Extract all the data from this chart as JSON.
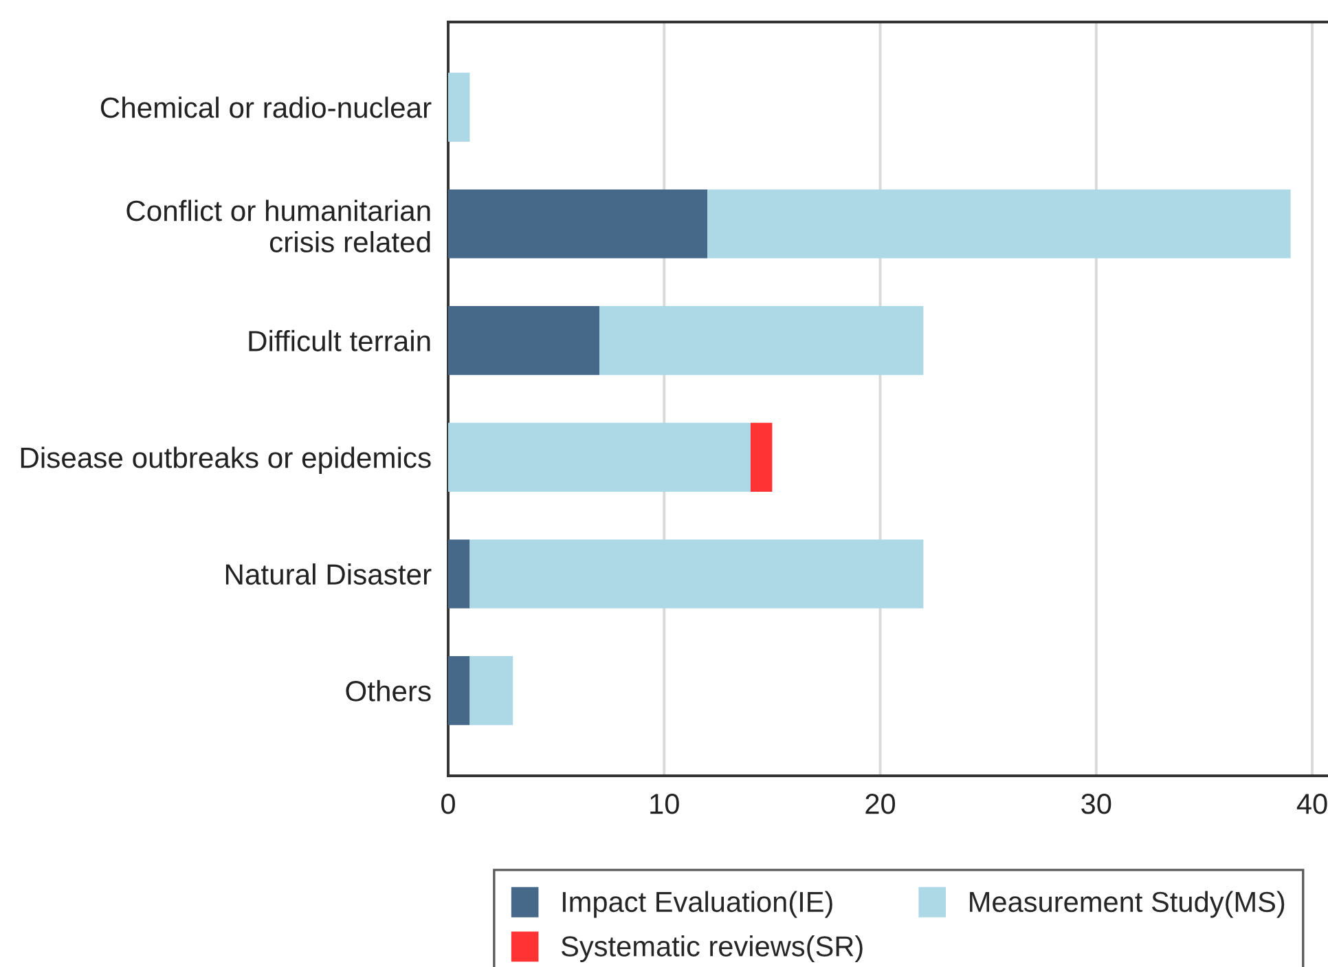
{
  "chart_data": {
    "type": "bar",
    "orientation": "horizontal",
    "stacked": true,
    "categories": [
      "Chemical or radio-nuclear",
      "Conflict or humanitarian\ncrisis related",
      "Difficult terrain",
      "Disease outbreaks or epidemics",
      "Natural Disaster",
      "Others"
    ],
    "series": [
      {
        "name": "Impact Evaluation(IE)",
        "color": "#46698a",
        "values": [
          null,
          12,
          7,
          null,
          1,
          1
        ]
      },
      {
        "name": "Measurement Study(MS)",
        "color": "#add8e6",
        "values": [
          1,
          27,
          15,
          14,
          21,
          2
        ]
      },
      {
        "name": "Systematic reviews(SR)",
        "color": "#ff3333",
        "values": [
          null,
          null,
          null,
          1,
          null,
          null
        ]
      }
    ],
    "xlim": [
      0,
      40.7
    ],
    "xticks": [
      0,
      10,
      20,
      30,
      40
    ],
    "grid": "x",
    "legend": "bottom"
  }
}
